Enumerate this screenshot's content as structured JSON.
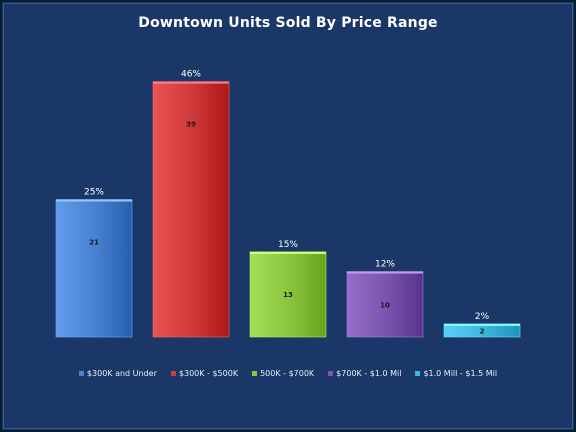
{
  "chart_data": {
    "type": "bar",
    "title": "Downtown Units Sold By Price Range",
    "xlabel": "",
    "ylabel": "",
    "ylim": [
      0,
      42
    ],
    "grid": false,
    "legend_position": "bottom",
    "categories": [
      "$300K and Under",
      "$300K - $500K",
      "500K - $700K",
      "$700K - $1.0 Mil",
      "$1.0 Mill - $1.5 Mil"
    ],
    "values": [
      21,
      39,
      13,
      10,
      2
    ],
    "percent_labels": [
      "25%",
      "46%",
      "15%",
      "12%",
      "2%"
    ],
    "colors": [
      "#4a82d2",
      "#d13a3a",
      "#8cc63f",
      "#7d55b0",
      "#3fb8de"
    ]
  }
}
